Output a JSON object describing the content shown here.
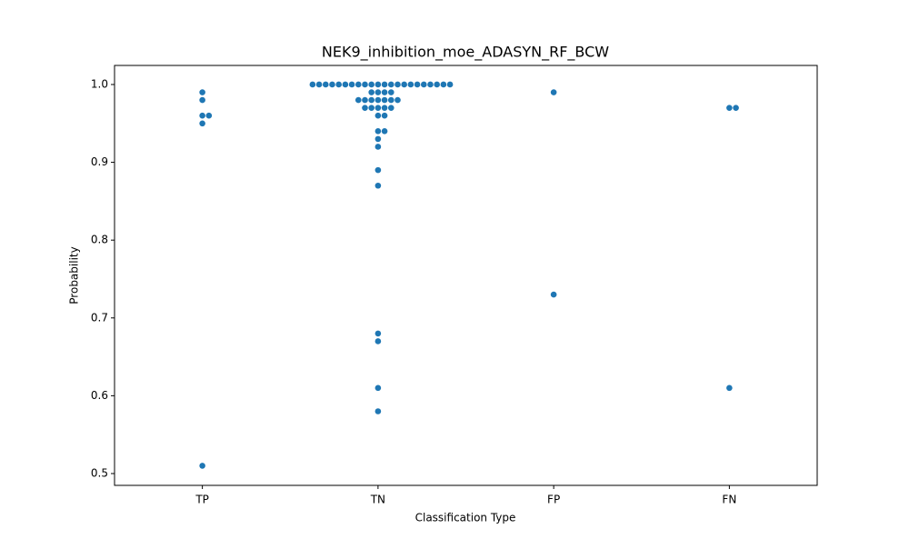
{
  "chart_data": {
    "type": "swarm",
    "title": "NEK9_inhibition_moe_ADASYN_RF_BCW",
    "x_label": "Classification Type",
    "y_label": "Probability",
    "categories": [
      "TP",
      "TN",
      "FP",
      "FN"
    ],
    "values": [
      [
        0.99,
        0.98,
        0.96,
        0.96,
        0.95,
        0.51
      ],
      [
        1.0,
        1.0,
        1.0,
        1.0,
        1.0,
        1.0,
        1.0,
        1.0,
        1.0,
        1.0,
        1.0,
        1.0,
        1.0,
        1.0,
        1.0,
        1.0,
        1.0,
        1.0,
        1.0,
        1.0,
        1.0,
        1.0,
        0.99,
        0.99,
        0.99,
        0.99,
        0.98,
        0.98,
        0.98,
        0.98,
        0.98,
        0.98,
        0.98,
        0.97,
        0.97,
        0.97,
        0.97,
        0.97,
        0.96,
        0.96,
        0.94,
        0.94,
        0.93,
        0.92,
        0.89,
        0.87,
        0.68,
        0.67,
        0.61,
        0.58
      ],
      [
        0.99,
        0.73
      ],
      [
        0.97,
        0.97,
        0.61
      ]
    ],
    "color": "#1f77b4",
    "ylim": [
      0.4848,
      1.0245
    ],
    "yticks": [
      0.5,
      0.6,
      0.7,
      0.8,
      0.9,
      {
        "value": 1,
        "label": "1.0"
      }
    ]
  }
}
